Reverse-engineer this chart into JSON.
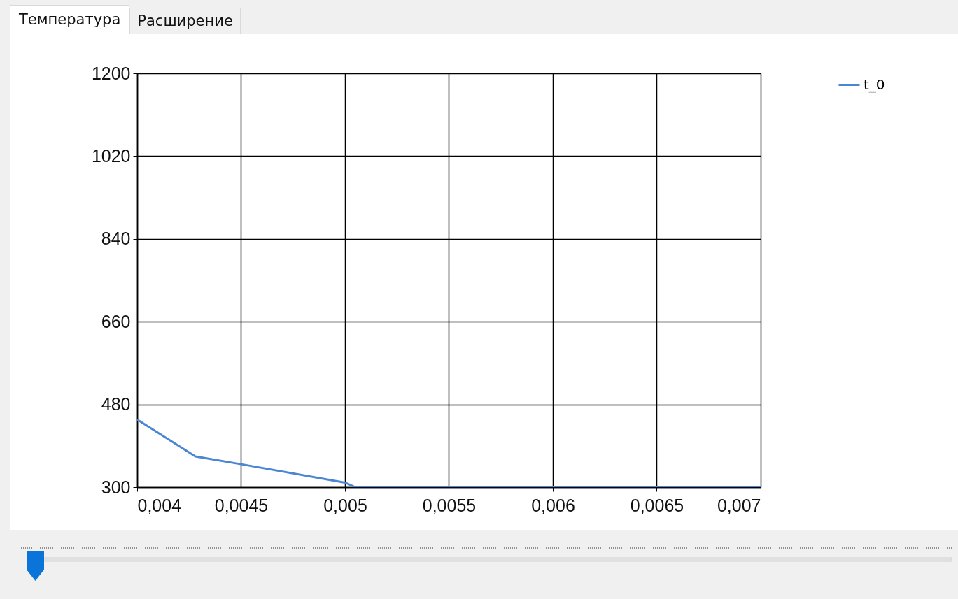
{
  "chart_data": {
    "type": "line",
    "annotations": [
      "Температура",
      "Расширение"
    ],
    "x": [
      0.004,
      0.00428,
      0.0045,
      0.005,
      0.00505,
      0.007
    ],
    "series": [
      {
        "name": "t_0",
        "color": "#4a86d4",
        "values": [
          447,
          367,
          350,
          310,
          300,
          300
        ]
      }
    ],
    "xlim": [
      0.004,
      0.007
    ],
    "xticks": [
      {
        "value": 0.004,
        "label": "0,004"
      },
      {
        "value": 0.0045,
        "label": "0,0045"
      },
      {
        "value": 0.005,
        "label": "0,005"
      },
      {
        "value": 0.0055,
        "label": "0,0055"
      },
      {
        "value": 0.006,
        "label": "0,006"
      },
      {
        "value": 0.0065,
        "label": "0,0065"
      },
      {
        "value": 0.007,
        "label": "0,007"
      }
    ],
    "ylim": [
      300,
      1200
    ],
    "yticks": [
      300,
      480,
      660,
      840,
      1020,
      1200
    ],
    "grid": true,
    "legend": "top right",
    "line_style": "solid"
  }
}
